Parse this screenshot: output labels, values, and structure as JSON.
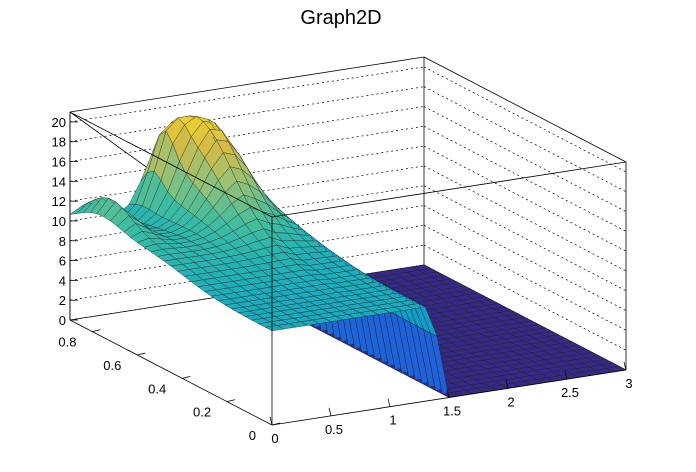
{
  "chart_data": {
    "type": "surface",
    "title": "Graph2D",
    "xlim": [
      0,
      3
    ],
    "ylim": [
      0,
      0.9
    ],
    "zlim": [
      0,
      21
    ],
    "x_ticks": [
      {
        "v": 0,
        "label": "0"
      },
      {
        "v": 0.5,
        "label": "0.5"
      },
      {
        "v": 1,
        "label": "1"
      },
      {
        "v": 1.5,
        "label": "1.5"
      },
      {
        "v": 2,
        "label": "2"
      },
      {
        "v": 2.5,
        "label": "2.5"
      },
      {
        "v": 3,
        "label": "3"
      }
    ],
    "y_ticks": [
      {
        "v": 0,
        "label": "0"
      },
      {
        "v": 0.2,
        "label": "0.2"
      },
      {
        "v": 0.4,
        "label": "0.4"
      },
      {
        "v": 0.6,
        "label": "0.6"
      },
      {
        "v": 0.8,
        "label": "0.8"
      }
    ],
    "z_ticks": [
      {
        "v": 0,
        "label": "0"
      },
      {
        "v": 2,
        "label": "2"
      },
      {
        "v": 4,
        "label": "4"
      },
      {
        "v": 6,
        "label": "6"
      },
      {
        "v": 8,
        "label": "8"
      },
      {
        "v": 10,
        "label": "10"
      },
      {
        "v": 12,
        "label": "12"
      },
      {
        "v": 14,
        "label": "14"
      },
      {
        "v": 16,
        "label": "16"
      },
      {
        "v": 18,
        "label": "18"
      },
      {
        "v": 20,
        "label": "20"
      }
    ],
    "palette": [
      "#352a87",
      "#1f5fd8",
      "#0f89d5",
      "#12a9c4",
      "#3bbca3",
      "#8ec27a",
      "#d6bb47",
      "#f9e21e"
    ],
    "surface": {
      "description": "approximate heights: plateau ~10-12 for x<1.4, drops to 0 for x>1.5; peak ~20 near x~0.9, y~0.8",
      "grid_nx": 30,
      "grid_ny": 30
    }
  }
}
